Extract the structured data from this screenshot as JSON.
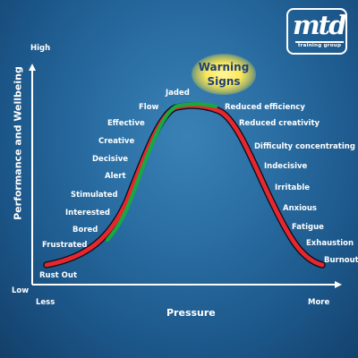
{
  "logo": {
    "text": "mtd",
    "subtitle": "training group"
  },
  "warning": {
    "line1": "Warning",
    "line2": "Signs"
  },
  "axes": {
    "y_title": "Performance and Wellbeing",
    "y_high": "High",
    "y_low": "Low",
    "x_title": "Pressure",
    "x_low": "Less",
    "x_high": "More"
  },
  "left_labels": [
    "Rust Out",
    "Frustrated",
    "Bored",
    "Interested",
    "Stimulated",
    "Alert",
    "Decisive",
    "Creative",
    "Effective",
    "Flow",
    "Jaded"
  ],
  "right_labels": [
    "Reduced efficiency",
    "Reduced creativity",
    "Difficulty concentrating",
    "Indecisive",
    "Irritable",
    "Anxious",
    "Fatigue",
    "Exhaustion",
    "Burnout"
  ],
  "colors": {
    "background": "#1f5f90",
    "curve_red": "#e8262d",
    "curve_green": "#17a844",
    "warning_glow": "#f4e33a",
    "warning_text": "#1f3f77"
  }
}
